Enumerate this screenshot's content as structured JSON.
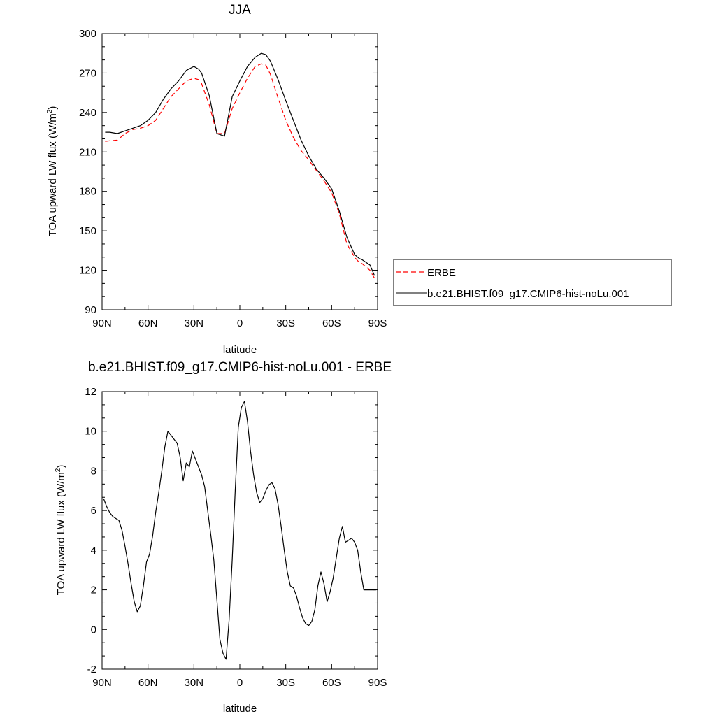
{
  "chart_data": [
    {
      "type": "line",
      "title": "JJA",
      "xlabel": "latitude",
      "ylabel": "TOA upward LW flux (W/m",
      "ylabel_sup": "2",
      "ylabel_end": ")",
      "xlim": [
        90,
        -90
      ],
      "ylim": [
        90,
        300
      ],
      "xticks": [
        90,
        60,
        30,
        0,
        -30,
        -60,
        -90
      ],
      "xtick_labels": [
        "90N",
        "60N",
        "30N",
        "0",
        "30S",
        "60S",
        "90S"
      ],
      "yticks": [
        90,
        120,
        150,
        180,
        210,
        240,
        270,
        300
      ],
      "ytick_labels": [
        "90",
        "120",
        "150",
        "180",
        "210",
        "240",
        "270",
        "300"
      ],
      "legend": "right",
      "series": [
        {
          "name": "ERBE",
          "color": "#ff0000",
          "style": "dashed",
          "x": [
            88,
            85,
            80,
            75,
            70,
            65,
            60,
            55,
            50,
            45,
            40,
            35,
            30,
            27,
            25,
            20,
            15,
            10,
            5,
            2,
            0,
            -5,
            -10,
            -14,
            -17,
            -20,
            -25,
            -30,
            -35,
            -40,
            -45,
            -50,
            -55,
            -60,
            -65,
            -70,
            -75,
            -78,
            -80,
            -85,
            -88
          ],
          "values": [
            218,
            218.5,
            219,
            224,
            227,
            228,
            230,
            234,
            243,
            252,
            258,
            264,
            266,
            265,
            262,
            246,
            224,
            224,
            243,
            250,
            255,
            266,
            275,
            277,
            276,
            269,
            251,
            234,
            221,
            211,
            204,
            196,
            188,
            179,
            163,
            140,
            130,
            126,
            125,
            120,
            114
          ]
        },
        {
          "name": "b.e21.BHIST.f09_g17.CMIP6-hist-noLu.001",
          "color": "#000000",
          "style": "solid",
          "x": [
            88,
            85,
            80,
            75,
            70,
            65,
            60,
            55,
            50,
            45,
            40,
            35,
            30,
            27,
            25,
            20,
            15,
            10,
            8,
            5,
            0,
            -5,
            -10,
            -14,
            -17,
            -20,
            -25,
            -30,
            -35,
            -40,
            -45,
            -50,
            -55,
            -60,
            -65,
            -70,
            -75,
            -78,
            -80,
            -85,
            -88
          ],
          "values": [
            225,
            225,
            224,
            226,
            228,
            230,
            234,
            240,
            250,
            258,
            264,
            272,
            275,
            273,
            270,
            253,
            224,
            222,
            234,
            252,
            264,
            275,
            282,
            285,
            284,
            279,
            265,
            249,
            234,
            219,
            207,
            197,
            190,
            182,
            165,
            145,
            132,
            129,
            128,
            124,
            116
          ]
        }
      ]
    },
    {
      "type": "line",
      "title": "b.e21.BHIST.f09_g17.CMIP6-hist-noLu.001 - ERBE",
      "xlabel": "latitude",
      "ylabel": "TOA upward LW flux (W/m",
      "ylabel_sup": "2",
      "ylabel_end": ")",
      "xlim": [
        90,
        -90
      ],
      "ylim": [
        -2,
        12
      ],
      "xticks": [
        90,
        60,
        30,
        0,
        -30,
        -60,
        -90
      ],
      "xtick_labels": [
        "90N",
        "60N",
        "30N",
        "0",
        "30S",
        "60S",
        "90S"
      ],
      "yticks": [
        -2,
        0,
        2,
        4,
        6,
        8,
        10,
        12
      ],
      "ytick_labels": [
        "-2",
        "0",
        "2",
        "4",
        "6",
        "8",
        "10",
        "12"
      ],
      "series": [
        {
          "color": "#000000",
          "style": "solid",
          "x": [
            89,
            87,
            85,
            83,
            81,
            79,
            77,
            75,
            73,
            71,
            69,
            67,
            65,
            63,
            61,
            59,
            57,
            55,
            53,
            51,
            49,
            47,
            45,
            43,
            41,
            39,
            37,
            35,
            33,
            31,
            29,
            27,
            25,
            23,
            21,
            19,
            17,
            15,
            13,
            11,
            9,
            7,
            5,
            3,
            1,
            -1,
            -3,
            -5,
            -7,
            -9,
            -11,
            -13,
            -15,
            -17,
            -19,
            -21,
            -23,
            -25,
            -27,
            -29,
            -31,
            -33,
            -35,
            -37,
            -39,
            -41,
            -43,
            -45,
            -47,
            -49,
            -51,
            -53,
            -55,
            -57,
            -59,
            -61,
            -63,
            -65,
            -67,
            -69,
            -71,
            -73,
            -75,
            -77,
            -79,
            -81,
            -83,
            -85,
            -87,
            -89
          ],
          "values": [
            6.6,
            6.2,
            5.9,
            5.7,
            5.6,
            5.5,
            5.0,
            4.2,
            3.3,
            2.3,
            1.4,
            0.9,
            1.2,
            2.2,
            3.4,
            3.8,
            4.7,
            5.9,
            6.9,
            8.0,
            9.2,
            10.0,
            9.8,
            9.6,
            9.4,
            8.7,
            7.5,
            8.4,
            8.2,
            9.0,
            8.6,
            8.2,
            7.8,
            7.2,
            6.0,
            4.8,
            3.5,
            1.5,
            -0.5,
            -1.2,
            -1.5,
            0.5,
            3.5,
            7.0,
            10.2,
            11.2,
            11.5,
            10.5,
            9.0,
            7.8,
            6.9,
            6.4,
            6.6,
            7.0,
            7.3,
            7.4,
            7.1,
            6.3,
            5.2,
            4.0,
            2.9,
            2.2,
            2.1,
            1.7,
            1.1,
            0.6,
            0.3,
            0.2,
            0.4,
            1.0,
            2.2,
            2.9,
            2.3,
            1.4,
            1.9,
            2.6,
            3.6,
            4.6,
            5.2,
            4.4,
            4.5,
            4.6,
            4.4,
            4.0,
            2.9,
            2.0,
            2.0,
            2.0,
            2.0,
            2.0
          ]
        }
      ]
    }
  ]
}
